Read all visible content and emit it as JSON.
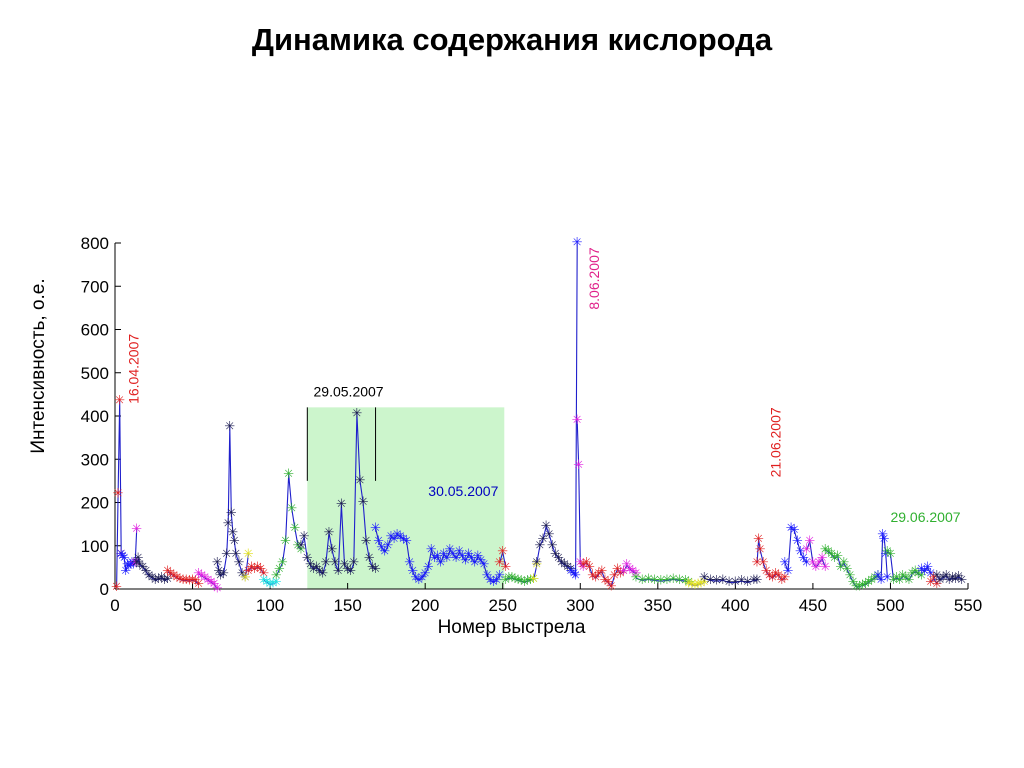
{
  "page_title": "Динамика содержания кислорода",
  "chart_data": {
    "type": "line",
    "title": "Динамика содержания кислорода",
    "xlabel": "Номер выстрела",
    "ylabel": "Интенсивность, о.е.",
    "xlim": [
      0,
      550
    ],
    "ylim": [
      0,
      800
    ],
    "xticks": [
      0,
      50,
      100,
      150,
      200,
      250,
      300,
      350,
      400,
      450,
      500,
      550
    ],
    "yticks": [
      0,
      100,
      200,
      300,
      400,
      500,
      600,
      700,
      800
    ],
    "grid": false,
    "highlight_region": {
      "x": [
        124,
        251
      ],
      "y": [
        0,
        420
      ],
      "color": "#ccf5cc"
    },
    "vertical_lines": [
      {
        "x": 124,
        "y": [
          250,
          420
        ]
      },
      {
        "x": 168,
        "y": [
          250,
          420
        ]
      }
    ],
    "line_color": "#1f1fcc",
    "annotations": [
      {
        "text": "16.04.2007",
        "x": 12,
        "y": 590,
        "color": "#e02020",
        "rotate": true
      },
      {
        "text": "29.05.2007",
        "x": 128,
        "y": 445,
        "color": "#000000",
        "rotate": false
      },
      {
        "text": "30.05.2007",
        "x": 202,
        "y": 215,
        "color": "#0000c0",
        "rotate": false
      },
      {
        "text": "8.06.2007",
        "x": 309,
        "y": 790,
        "color": "#e0208a",
        "rotate": true
      },
      {
        "text": "21.06.2007",
        "x": 426,
        "y": 420,
        "color": "#e02020",
        "rotate": true
      },
      {
        "text": "29.06.2007",
        "x": 500,
        "y": 155,
        "color": "#30b030",
        "rotate": false
      }
    ],
    "series": [
      {
        "color": "#e02020",
        "x": [
          1,
          2,
          3,
          4
        ],
        "y": [
          3,
          220,
          435,
          80
        ]
      },
      {
        "color": "#1a1aff",
        "x": [
          4,
          5,
          6,
          7,
          8,
          9,
          10,
          11,
          12,
          13
        ],
        "y": [
          80,
          75,
          70,
          40,
          55,
          52,
          55,
          60,
          55,
          60
        ]
      },
      {
        "color": "#e020e0",
        "x": [
          13,
          14
        ],
        "y": [
          60,
          138
        ]
      },
      {
        "color": "#1a1a50",
        "x": [
          14,
          15,
          16,
          18,
          20,
          22,
          24,
          26,
          28,
          30,
          32,
          34
        ],
        "y": [
          60,
          70,
          55,
          50,
          40,
          30,
          25,
          20,
          22,
          25,
          20,
          22
        ]
      },
      {
        "color": "#e02020",
        "x": [
          34,
          36,
          38,
          40,
          42,
          44,
          46,
          48,
          50,
          52,
          54
        ],
        "y": [
          40,
          35,
          30,
          25,
          22,
          20,
          20,
          18,
          20,
          18,
          10
        ]
      },
      {
        "color": "#e020e0",
        "x": [
          54,
          56,
          58,
          60,
          62,
          64,
          66
        ],
        "y": [
          35,
          30,
          25,
          20,
          15,
          10,
          0
        ]
      },
      {
        "color": "#1a1a50",
        "x": [
          66,
          67,
          68,
          70,
          72,
          73,
          74,
          75,
          76,
          77,
          78,
          80,
          82,
          84
        ],
        "y": [
          60,
          40,
          30,
          35,
          80,
          150,
          375,
          175,
          130,
          110,
          80,
          60,
          35,
          25
        ]
      },
      {
        "color": "#e0e020",
        "x": [
          84,
          86
        ],
        "y": [
          25,
          80
        ]
      },
      {
        "color": "#e02020",
        "x": [
          86,
          88,
          90,
          92,
          94,
          96
        ],
        "y": [
          40,
          50,
          45,
          50,
          45,
          35
        ]
      },
      {
        "color": "#20e0e0",
        "x": [
          96,
          98,
          100,
          102,
          104
        ],
        "y": [
          20,
          15,
          10,
          12,
          15
        ]
      },
      {
        "color": "#30b030",
        "x": [
          104,
          106,
          108,
          110,
          112,
          114,
          116,
          118,
          120
        ],
        "y": [
          30,
          45,
          60,
          110,
          265,
          185,
          140,
          100,
          90
        ]
      },
      {
        "color": "#1a1a50",
        "x": [
          120,
          122,
          124,
          126,
          128,
          130,
          132,
          134,
          136,
          138,
          140,
          142,
          144,
          146,
          148,
          150,
          152,
          154,
          156,
          158,
          160,
          162,
          164,
          166,
          168
        ],
        "y": [
          100,
          120,
          70,
          55,
          45,
          50,
          40,
          35,
          60,
          130,
          90,
          60,
          40,
          195,
          55,
          45,
          40,
          60,
          405,
          250,
          200,
          110,
          70,
          50,
          45
        ]
      },
      {
        "color": "#1a1aff",
        "x": [
          168,
          170,
          172,
          174,
          176,
          178,
          180,
          182,
          184,
          186,
          188,
          190,
          192,
          194,
          196,
          198,
          200,
          202,
          204,
          206,
          208,
          210,
          212,
          214,
          216,
          218,
          220,
          222,
          224,
          226,
          228,
          230,
          232,
          234,
          236,
          238,
          240,
          242,
          244,
          246,
          248
        ],
        "y": [
          140,
          110,
          95,
          85,
          100,
          120,
          115,
          125,
          120,
          115,
          110,
          60,
          40,
          25,
          20,
          25,
          35,
          50,
          90,
          70,
          75,
          60,
          80,
          70,
          90,
          80,
          70,
          85,
          75,
          65,
          80,
          70,
          60,
          75,
          65,
          55,
          30,
          20,
          15,
          20,
          30
        ]
      },
      {
        "color": "#e02020",
        "x": [
          248,
          250,
          252
        ],
        "y": [
          60,
          85,
          50
        ]
      },
      {
        "color": "#30b030",
        "x": [
          252,
          254,
          256,
          258,
          260,
          262,
          264,
          266,
          268,
          270
        ],
        "y": [
          20,
          25,
          25,
          22,
          20,
          18,
          15,
          18,
          20,
          22
        ]
      },
      {
        "color": "#e0e020",
        "x": [
          270,
          272
        ],
        "y": [
          22,
          55
        ]
      },
      {
        "color": "#1a1a50",
        "x": [
          272,
          274,
          276,
          278,
          280,
          282,
          284,
          286,
          288,
          290,
          292,
          294
        ],
        "y": [
          60,
          100,
          115,
          145,
          125,
          100,
          80,
          70,
          60,
          55,
          50,
          45
        ]
      },
      {
        "color": "#1a1aff",
        "x": [
          294,
          296,
          297,
          298
        ],
        "y": [
          40,
          35,
          30,
          800
        ]
      },
      {
        "color": "#e020e0",
        "x": [
          298,
          299,
          300,
          302
        ],
        "y": [
          390,
          285,
          60,
          50
        ]
      },
      {
        "color": "#e02020",
        "x": [
          302,
          304,
          306,
          308,
          310,
          312,
          314,
          316,
          318,
          320,
          322,
          324,
          326,
          328
        ],
        "y": [
          55,
          60,
          50,
          30,
          25,
          35,
          40,
          20,
          15,
          5,
          30,
          45,
          35,
          40
        ]
      },
      {
        "color": "#e020e0",
        "x": [
          328,
          330,
          332,
          334,
          336
        ],
        "y": [
          40,
          55,
          45,
          40,
          35
        ]
      },
      {
        "color": "#30b030",
        "x": [
          336,
          340,
          344,
          348,
          352,
          356,
          360,
          364,
          368,
          370
        ],
        "y": [
          25,
          20,
          22,
          20,
          18,
          20,
          22,
          20,
          18,
          15
        ]
      },
      {
        "color": "#e0e020",
        "x": [
          370,
          372,
          374,
          376,
          378,
          380
        ],
        "y": [
          12,
          10,
          8,
          10,
          12,
          15
        ]
      },
      {
        "color": "#1a1a50",
        "x": [
          380,
          384,
          388,
          392,
          396,
          400,
          404,
          408,
          412,
          414
        ],
        "y": [
          25,
          20,
          18,
          20,
          15,
          15,
          18,
          15,
          20,
          20
        ]
      },
      {
        "color": "#e02020",
        "x": [
          414,
          415,
          416,
          418,
          420,
          422,
          424,
          426,
          428,
          430,
          432
        ],
        "y": [
          60,
          115,
          90,
          60,
          40,
          30,
          25,
          35,
          30,
          20,
          25
        ]
      },
      {
        "color": "#1a1aff",
        "x": [
          432,
          434,
          436,
          438,
          440,
          442,
          444,
          446
        ],
        "y": [
          60,
          40,
          140,
          135,
          110,
          85,
          70,
          60
        ]
      },
      {
        "color": "#e020e0",
        "x": [
          446,
          448,
          450,
          452,
          454,
          456,
          458
        ],
        "y": [
          90,
          110,
          60,
          50,
          60,
          70,
          50
        ]
      },
      {
        "color": "#30b030",
        "x": [
          458,
          460,
          462,
          464,
          466,
          468,
          470,
          472,
          474,
          476,
          478,
          480,
          482,
          484,
          486,
          488,
          490,
          492
        ],
        "y": [
          90,
          85,
          80,
          70,
          75,
          50,
          60,
          45,
          30,
          15,
          5,
          5,
          8,
          10,
          15,
          20,
          25,
          30
        ]
      },
      {
        "color": "#1a1aff",
        "x": [
          492,
          494,
          495,
          496,
          497,
          498
        ],
        "y": [
          30,
          20,
          125,
          115,
          80,
          25
        ]
      },
      {
        "color": "#30b030",
        "x": [
          498,
          500,
          502,
          504,
          506,
          508,
          510,
          512,
          514,
          516,
          518,
          520
        ],
        "y": [
          85,
          80,
          20,
          25,
          20,
          30,
          25,
          20,
          35,
          40,
          35,
          30
        ]
      },
      {
        "color": "#1a1aff",
        "x": [
          520,
          522,
          524,
          526
        ],
        "y": [
          45,
          40,
          50,
          35
        ]
      },
      {
        "color": "#e02020",
        "x": [
          526,
          528,
          530
        ],
        "y": [
          15,
          25,
          10
        ]
      },
      {
        "color": "#1a1a50",
        "x": [
          530,
          532,
          534,
          536,
          538,
          540,
          542,
          544,
          546
        ],
        "y": [
          30,
          20,
          25,
          30,
          20,
          25,
          22,
          28,
          20
        ]
      }
    ]
  }
}
